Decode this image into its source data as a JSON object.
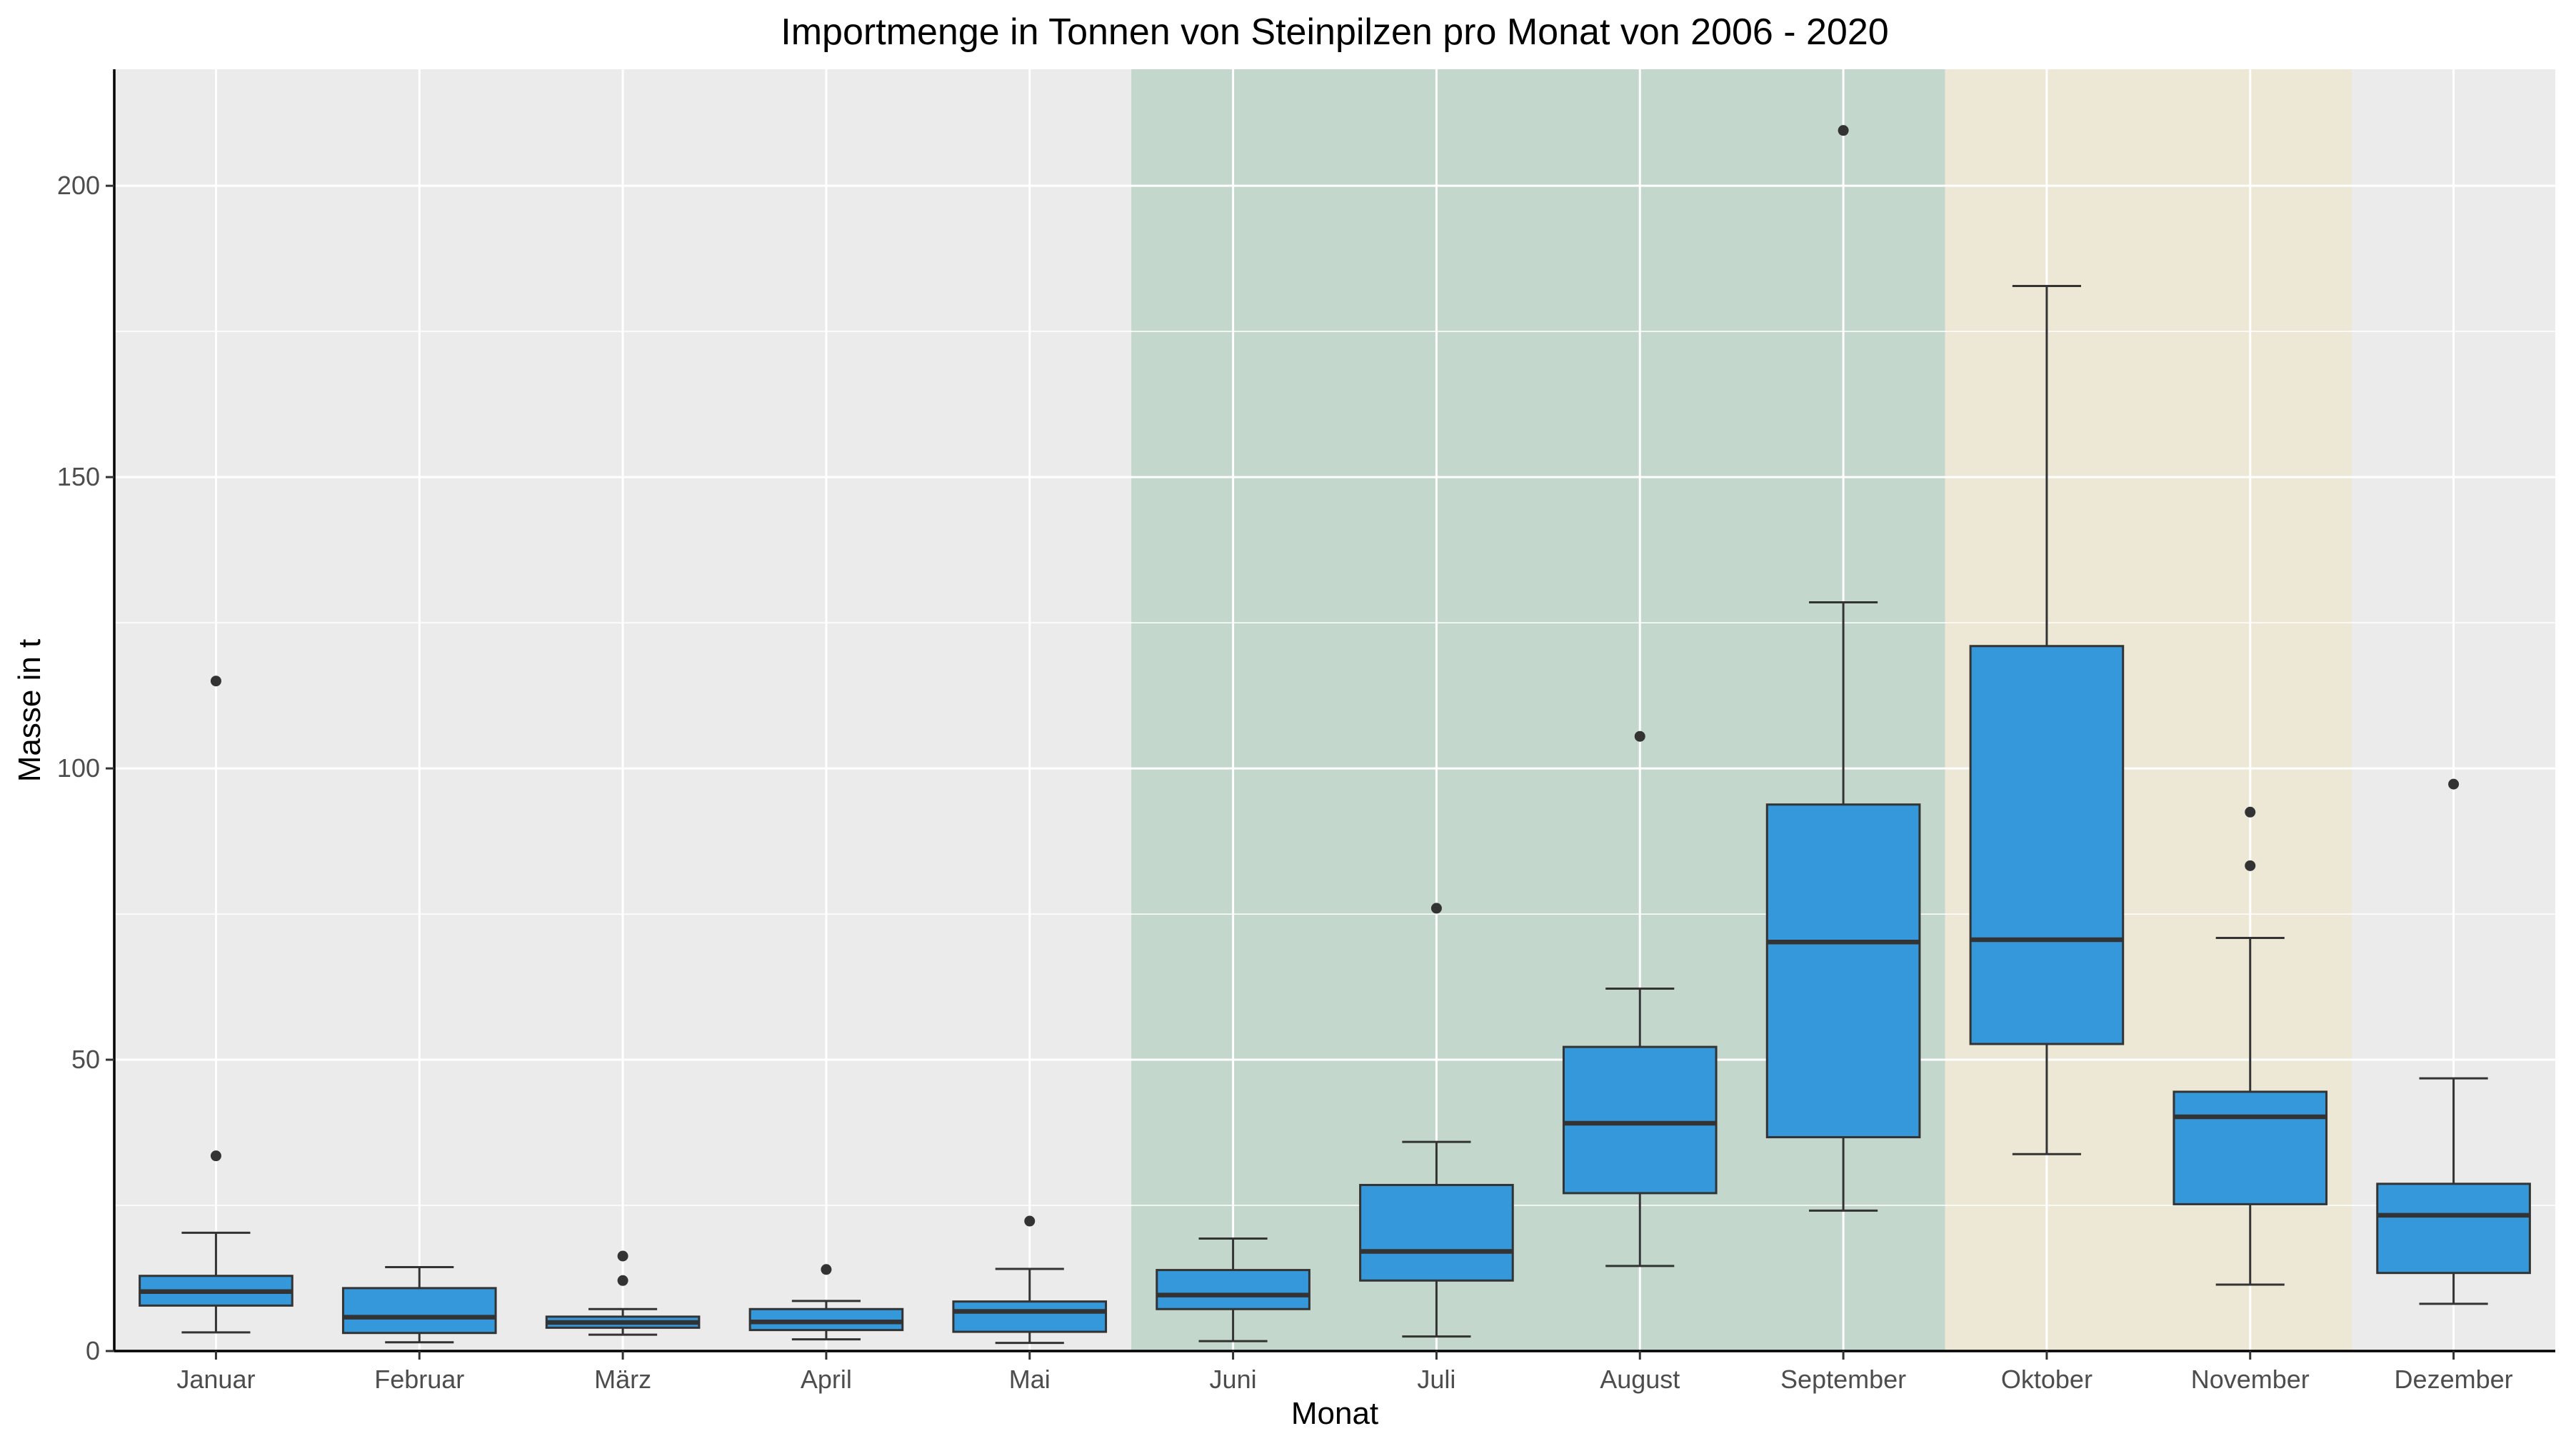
{
  "chart_data": {
    "type": "boxplot",
    "title": "Importmenge in Tonnen von Steinpilzen pro Monat von 2006 - 2020",
    "xlabel": "Monat",
    "ylabel": "Masse in t",
    "ylim": [
      0,
      220
    ],
    "yticks": [
      0,
      50,
      100,
      150,
      200
    ],
    "grid": true,
    "panel_color": "#ebebeb",
    "box_color": "#3498db",
    "categories": [
      "Januar",
      "Februar",
      "März",
      "April",
      "Mai",
      "Juni",
      "Juli",
      "August",
      "September",
      "Oktober",
      "November",
      "Dezember"
    ],
    "boxes": [
      {
        "whisker_low": 3.2,
        "q1": 7.8,
        "median": 10.2,
        "q3": 12.9,
        "whisker_high": 20.3,
        "outliers": [
          33.5,
          115.0
        ]
      },
      {
        "whisker_low": 1.5,
        "q1": 3.1,
        "median": 5.8,
        "q3": 10.8,
        "whisker_high": 14.4,
        "outliers": []
      },
      {
        "whisker_low": 2.8,
        "q1": 4.0,
        "median": 4.9,
        "q3": 5.9,
        "whisker_high": 7.2,
        "outliers": [
          12.1,
          16.3
        ]
      },
      {
        "whisker_low": 2.0,
        "q1": 3.6,
        "median": 5.0,
        "q3": 7.2,
        "whisker_high": 8.6,
        "outliers": [
          14.0
        ]
      },
      {
        "whisker_low": 1.4,
        "q1": 3.3,
        "median": 6.8,
        "q3": 8.5,
        "whisker_high": 14.1,
        "outliers": [
          22.3
        ]
      },
      {
        "whisker_low": 1.7,
        "q1": 7.2,
        "median": 9.6,
        "q3": 13.9,
        "whisker_high": 19.3,
        "outliers": []
      },
      {
        "whisker_low": 2.5,
        "q1": 12.1,
        "median": 17.1,
        "q3": 28.5,
        "whisker_high": 35.9,
        "outliers": [
          76.0
        ]
      },
      {
        "whisker_low": 14.6,
        "q1": 27.1,
        "median": 39.1,
        "q3": 52.2,
        "whisker_high": 62.2,
        "outliers": [
          105.5
        ]
      },
      {
        "whisker_low": 24.1,
        "q1": 36.7,
        "median": 70.2,
        "q3": 93.8,
        "whisker_high": 128.5,
        "outliers": [
          209.5
        ]
      },
      {
        "whisker_low": 33.8,
        "q1": 52.7,
        "median": 70.6,
        "q3": 121.0,
        "whisker_high": 182.8,
        "outliers": []
      },
      {
        "whisker_low": 11.4,
        "q1": 25.2,
        "median": 40.2,
        "q3": 44.5,
        "whisker_high": 70.9,
        "outliers": [
          83.3,
          92.5
        ]
      },
      {
        "whisker_low": 8.1,
        "q1": 13.4,
        "median": 23.3,
        "q3": 28.7,
        "whisker_high": 46.8,
        "outliers": [
          97.3
        ]
      }
    ],
    "highlight_bands": [
      {
        "from_category": "Juni",
        "to_category": "September",
        "color": "#c3d7cd"
      },
      {
        "from_category": "Oktober",
        "to_category": "November",
        "color": "#ede8d5"
      }
    ]
  }
}
